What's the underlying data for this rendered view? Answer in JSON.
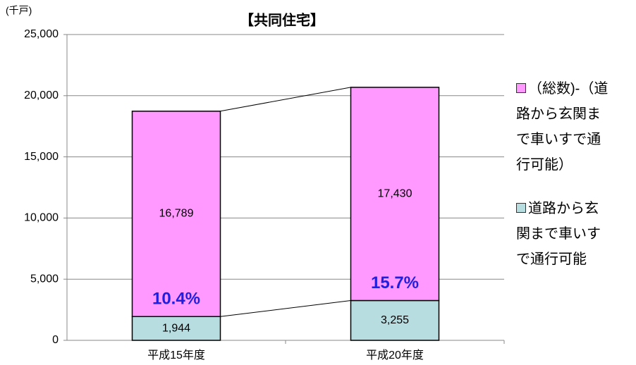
{
  "chart_data": {
    "type": "stacked-bar",
    "title": "【共同住宅】",
    "y_unit": "(千戸)",
    "categories": [
      "平成15年度",
      "平成20年度"
    ],
    "series": [
      {
        "name": "道路から玄関まで車いすで通行可能",
        "color": "#b7dde1",
        "values": [
          1944,
          3255
        ],
        "value_labels": [
          "1,944",
          "3,255"
        ]
      },
      {
        "name": "（総数)-（道路から玄関まで車いすで通行可能）",
        "color": "#ff99ff",
        "values": [
          16789,
          17430
        ],
        "value_labels": [
          "16,789",
          "17,430"
        ]
      }
    ],
    "annotations": [
      "10.4%",
      "15.7%"
    ],
    "ylim": [
      0,
      25000
    ],
    "yticks": [
      0,
      {
        "value": 5000,
        "label": "5,000"
      },
      {
        "value": 10000,
        "label": "10,000"
      },
      {
        "value": 15000,
        "label": "15,000"
      },
      {
        "value": 20000,
        "label": "20,000"
      },
      {
        "value": 25000,
        "label": "25,000"
      }
    ],
    "grid": true,
    "legend": "right"
  }
}
